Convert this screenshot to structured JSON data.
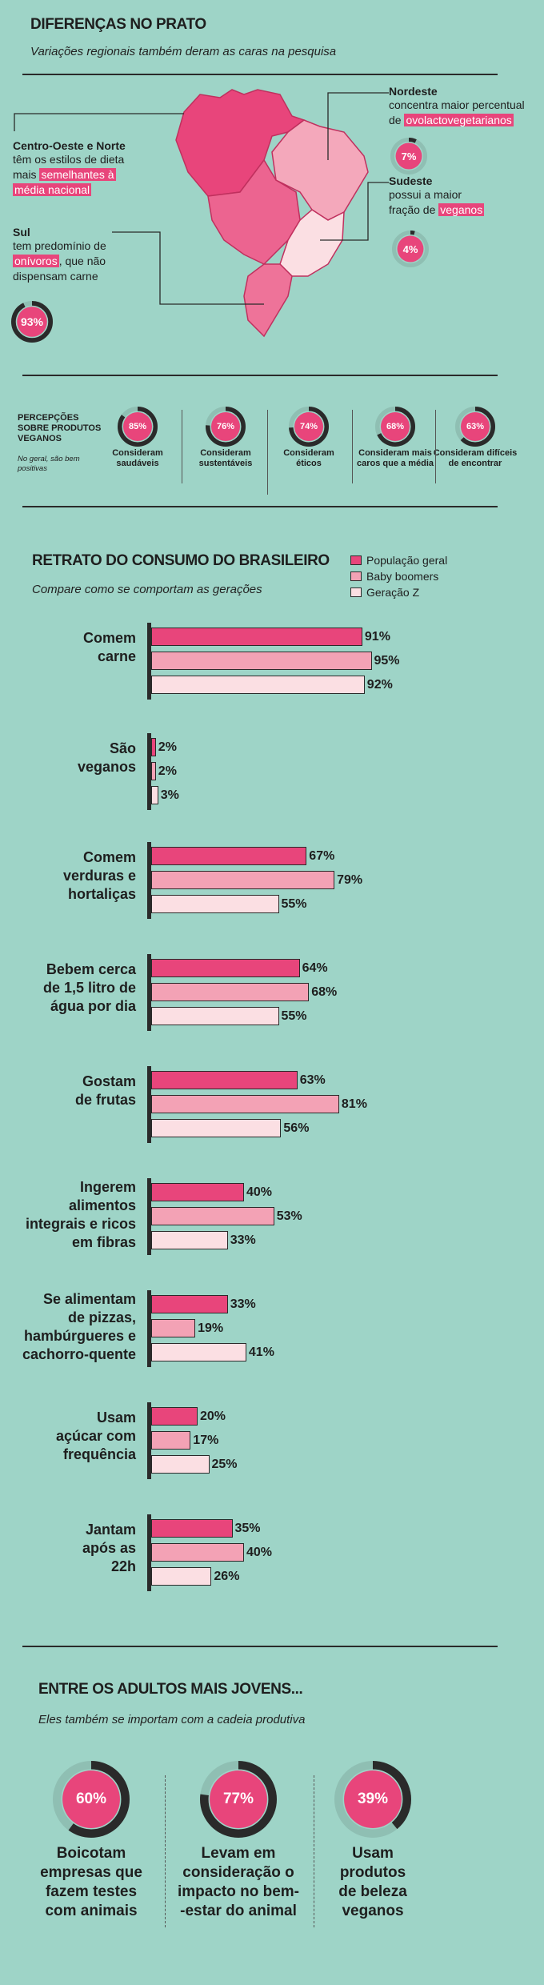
{
  "colors": {
    "background": "#9ed4c7",
    "populacao": "#e8457b",
    "boomers": "#f3a2b5",
    "genz": "#fbdfe3",
    "dark": "#2a2a2a"
  },
  "section1": {
    "title": "DIFERENÇAS NO PRATO",
    "subtitle": "Variações regionais também deram as caras na pesquisa",
    "centro_oeste": {
      "title": "Centro-Oeste e Norte",
      "line1": "têm os estilos de dieta",
      "line2_plain": "mais ",
      "line2_hl": "semelhantes à",
      "line3_hl": "média nacional"
    },
    "sul": {
      "title": "Sul",
      "line1": "tem predomínio de",
      "line2_hl": "onívoros",
      "line2_plain": ", que não",
      "line3": "dispensam carne",
      "donut": {
        "label": "93%",
        "value": 93
      }
    },
    "nordeste": {
      "title": "Nordeste",
      "line1": "concentra maior percentual",
      "line2_plain": "de ",
      "line2_hl": "ovolactovegetarianos",
      "donut": {
        "label": "7%",
        "value": 7
      }
    },
    "sudeste": {
      "title": "Sudeste",
      "line1": "possui a maior",
      "line2_plain": "fração de ",
      "line2_hl": "veganos",
      "donut": {
        "label": "4%",
        "value": 4
      }
    }
  },
  "perceptions": {
    "heading_line1": "PERCEPÇÕES",
    "heading_line2": "SOBRE PRODUTOS",
    "heading_line3": "VEGANOS",
    "note_line1": "No geral, são bem",
    "note_line2": "positivas",
    "items": [
      {
        "value": 85,
        "label": "85%",
        "cap1": "Consideram",
        "cap2": "saudáveis"
      },
      {
        "value": 76,
        "label": "76%",
        "cap1": "Consideram",
        "cap2": "sustentáveis"
      },
      {
        "value": 74,
        "label": "74%",
        "cap1": "Consideram",
        "cap2": "éticos"
      },
      {
        "value": 68,
        "label": "68%",
        "cap1": "Consideram mais",
        "cap2": "caros que a média"
      },
      {
        "value": 63,
        "label": "63%",
        "cap1": "Consideram difíceis",
        "cap2": "de encontrar"
      }
    ]
  },
  "chart_data": {
    "type": "bar",
    "title": "RETRATO DO CONSUMO DO BRASILEIRO",
    "subtitle": "Compare como se comportam as gerações",
    "unit": "%",
    "legend": [
      "População geral",
      "Baby boomers",
      "Geração Z"
    ],
    "categories": [
      [
        "Comem",
        "carne"
      ],
      [
        "São",
        "veganos"
      ],
      [
        "Comem",
        "verduras e",
        "hortaliças"
      ],
      [
        "Bebem cerca",
        "de 1,5 litro de",
        "água por dia"
      ],
      [
        "Gostam",
        "de frutas"
      ],
      [
        "Ingerem",
        "alimentos",
        "integrais e ricos",
        "em fibras"
      ],
      [
        "Se alimentam",
        "de pizzas,",
        "hambúrgueres e",
        "cachorro-quente"
      ],
      [
        "Usam",
        "açúcar com",
        "frequência"
      ],
      [
        "Jantam",
        "após as",
        "22h"
      ]
    ],
    "series": [
      {
        "name": "População geral",
        "values": [
          91,
          2,
          67,
          64,
          63,
          40,
          33,
          20,
          35
        ]
      },
      {
        "name": "Baby boomers",
        "values": [
          95,
          2,
          79,
          68,
          81,
          53,
          19,
          17,
          40
        ]
      },
      {
        "name": "Geração Z",
        "values": [
          92,
          3,
          55,
          55,
          56,
          33,
          41,
          25,
          26
        ]
      }
    ],
    "value_labels": [
      [
        "91%",
        "95%",
        "92%"
      ],
      [
        "2%",
        "2%",
        "3%"
      ],
      [
        "67%",
        "79%",
        "55%"
      ],
      [
        "64%",
        "68%",
        "55%"
      ],
      [
        "63%",
        "81%",
        "56%"
      ],
      [
        "40%",
        "53%",
        "33%"
      ],
      [
        "33%",
        "19%",
        "41%"
      ],
      [
        "20%",
        "17%",
        "25%"
      ],
      [
        "35%",
        "40%",
        "26%"
      ]
    ]
  },
  "young": {
    "title": "ENTRE OS ADULTOS MAIS JOVENS...",
    "subtitle": "Eles também se importam com a cadeia produtiva",
    "items": [
      {
        "value": 60,
        "label": "60%",
        "lines": [
          "Boicotam",
          "empresas que",
          "fazem testes",
          "com animais"
        ]
      },
      {
        "value": 77,
        "label": "77%",
        "lines": [
          "Levam em",
          "consideração o",
          "impacto no bem-",
          "-estar do animal"
        ]
      },
      {
        "value": 39,
        "label": "39%",
        "lines": [
          "Usam",
          "produtos",
          "de beleza",
          "veganos"
        ]
      }
    ]
  }
}
